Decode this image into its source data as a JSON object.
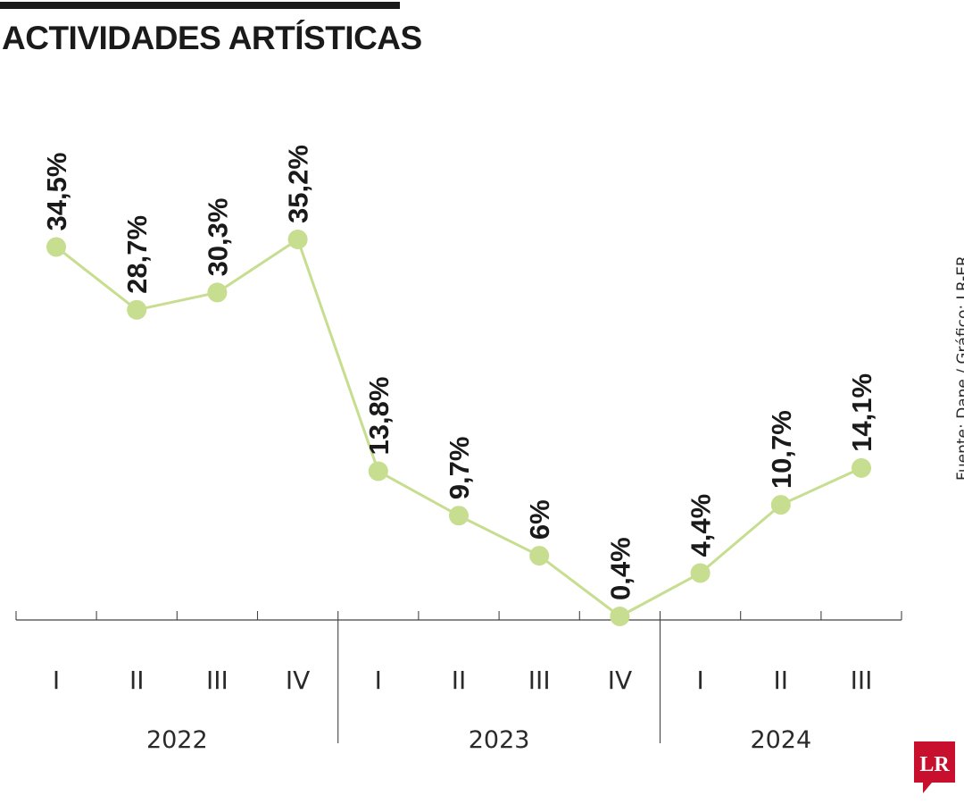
{
  "header": {
    "title": "ACTIVIDADES ARTÍSTICAS"
  },
  "source": "Fuente: Dane / Gráfico: LR-ER",
  "logo": {
    "text": "LR",
    "color": "#c8102e"
  },
  "colors": {
    "line": "#c7dd8f",
    "text": "#1a1a1a",
    "axis": "#444444"
  },
  "chart_data": {
    "type": "line",
    "title": "ACTIVIDADES ARTÍSTICAS",
    "categories": [
      "I",
      "II",
      "III",
      "IV",
      "I",
      "II",
      "III",
      "IV",
      "I",
      "II",
      "III"
    ],
    "years": [
      {
        "label": "2022",
        "quarters": 4
      },
      {
        "label": "2023",
        "quarters": 4
      },
      {
        "label": "2024",
        "quarters": 3
      }
    ],
    "series": [
      {
        "values": [
          34.5,
          28.7,
          30.3,
          35.2,
          13.8,
          9.7,
          6,
          0.4,
          4.4,
          10.7,
          14.1
        ],
        "labels": [
          "34,5%",
          "28,7%",
          "30,3%",
          "35,2%",
          "13,8%",
          "9,7%",
          "6%",
          "0,4%",
          "4,4%",
          "10,7%",
          "14,1%"
        ]
      }
    ],
    "ylim": [
      0,
      36
    ],
    "grid": false,
    "legend": "none"
  }
}
